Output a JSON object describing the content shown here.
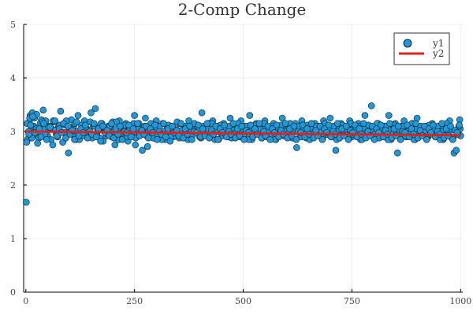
{
  "chart_data": {
    "type": "scatter",
    "title": "2-Comp Change",
    "xlabel": "",
    "ylabel": "",
    "xlim": [
      -5,
      1005
    ],
    "ylim": [
      0,
      5
    ],
    "x_ticks": [
      0,
      250,
      500,
      750,
      1000
    ],
    "x_tick_labels": [
      "0",
      "250",
      "500",
      "750",
      "1000"
    ],
    "y_ticks": [
      0,
      1,
      2,
      3,
      4,
      5
    ],
    "y_tick_labels": [
      "0",
      "1",
      "2",
      "3",
      "4",
      "5"
    ],
    "grid": true,
    "legend_position": "top-right",
    "series": [
      {
        "name": "y1",
        "type": "scatter",
        "color": "#1f97d8",
        "x": [
          1,
          5,
          8,
          10,
          12,
          15,
          18,
          20,
          22,
          25,
          28,
          30,
          33,
          36,
          40,
          43,
          46,
          50,
          55,
          60,
          65,
          70,
          75,
          80,
          85,
          90,
          95,
          100,
          105,
          110,
          115,
          120,
          125,
          130,
          135,
          140,
          145,
          150,
          155,
          160,
          165,
          170,
          175,
          180,
          185,
          190,
          195,
          200,
          205,
          210,
          215,
          220,
          225,
          230,
          235,
          240,
          245,
          250,
          255,
          260,
          265,
          270,
          275,
          280,
          285,
          290,
          295,
          300,
          305,
          310,
          315,
          320,
          325,
          330,
          335,
          340,
          345,
          350,
          355,
          360,
          365,
          370,
          375,
          380,
          385,
          390,
          395,
          400,
          405,
          410,
          415,
          420,
          425,
          430,
          435,
          440,
          445,
          450,
          455,
          460,
          465,
          470,
          475,
          480,
          485,
          490,
          495,
          500,
          505,
          510,
          515,
          520,
          525,
          530,
          535,
          540,
          545,
          550,
          555,
          560,
          565,
          570,
          575,
          580,
          585,
          590,
          595,
          600,
          605,
          610,
          615,
          620,
          625,
          630,
          635,
          640,
          645,
          650,
          655,
          660,
          665,
          670,
          675,
          680,
          685,
          690,
          695,
          700,
          705,
          710,
          715,
          720,
          725,
          730,
          735,
          740,
          745,
          750,
          755,
          760,
          765,
          770,
          775,
          780,
          785,
          790,
          795,
          800,
          805,
          810,
          815,
          820,
          825,
          830,
          835,
          840,
          845,
          850,
          855,
          860,
          865,
          870,
          875,
          880,
          885,
          890,
          895,
          900,
          905,
          910,
          915,
          920,
          925,
          930,
          935,
          940,
          945,
          950,
          955,
          960,
          965,
          970,
          975,
          980,
          985,
          990,
          995,
          998,
          999,
          1000,
          3,
          6,
          9,
          14,
          17,
          24,
          27,
          38,
          44,
          52,
          58,
          63,
          68,
          73,
          78,
          88,
          93,
          98,
          103,
          108,
          113,
          118,
          123,
          128,
          133,
          138,
          143,
          148,
          153,
          158,
          163,
          168,
          173,
          178,
          183,
          188,
          193,
          198,
          203,
          208,
          213,
          218,
          223,
          228,
          233,
          238,
          243,
          248,
          253,
          258,
          263,
          268,
          273,
          278,
          283,
          288,
          293,
          298,
          303,
          308,
          313,
          318,
          323,
          328,
          333,
          338,
          343,
          348,
          353,
          358,
          363,
          368,
          373,
          378,
          383,
          388,
          393,
          398,
          403,
          408,
          413,
          418,
          423,
          428,
          433,
          438,
          443,
          448,
          453,
          458,
          463,
          468,
          473,
          478,
          483,
          488,
          493,
          498,
          503,
          508,
          513,
          518,
          523,
          528,
          533,
          538,
          543,
          548,
          553,
          558,
          563,
          568,
          573,
          578,
          583,
          588,
          593,
          598,
          603,
          608,
          613,
          618,
          623,
          628,
          633,
          638,
          643,
          648,
          653,
          658,
          663,
          668,
          673,
          678,
          683,
          688,
          693,
          698,
          703,
          708,
          713,
          718,
          723,
          728,
          733,
          738,
          743,
          748,
          753,
          758,
          763,
          768,
          773,
          778,
          783,
          788,
          793,
          798,
          803,
          808,
          813,
          818,
          823,
          828,
          833,
          838,
          843,
          848,
          853,
          858,
          863,
          868,
          873,
          878,
          883,
          888,
          893,
          898,
          903,
          908,
          913,
          918,
          923,
          928,
          933,
          938,
          943,
          948,
          953,
          958,
          963,
          968,
          973,
          978,
          983,
          988,
          993,
          996,
          2,
          7,
          11,
          16,
          21,
          31,
          35,
          41,
          48,
          56,
          62,
          67,
          72,
          77,
          82,
          87,
          92,
          97,
          102,
          107,
          112,
          117,
          122,
          127,
          132,
          137,
          142,
          147,
          152,
          157,
          162,
          167,
          172,
          177,
          182,
          187,
          192,
          197,
          202,
          207,
          212,
          217,
          222,
          227,
          232,
          237,
          242,
          247,
          252,
          257,
          262,
          267,
          272,
          277,
          282,
          287,
          292,
          297,
          302,
          307,
          312,
          317,
          322,
          327,
          332,
          337,
          342,
          347,
          352,
          357,
          362,
          367,
          372,
          377,
          382,
          387,
          392,
          397,
          402,
          407,
          412,
          417,
          422,
          427,
          432,
          437,
          442,
          447,
          452,
          457,
          462,
          467,
          472,
          477,
          482,
          487,
          492,
          497,
          502,
          507,
          512,
          517,
          522,
          527,
          532,
          537,
          542,
          547,
          552,
          557,
          562,
          567,
          572,
          577,
          582,
          587,
          592,
          597,
          602,
          607,
          612,
          617,
          622,
          627,
          632,
          637,
          642,
          647,
          652,
          657,
          662,
          667,
          672,
          677,
          682,
          687,
          692,
          697,
          702,
          707,
          712,
          717,
          722,
          727,
          732,
          737,
          742,
          747,
          752,
          757,
          762,
          767,
          772,
          777,
          782,
          787,
          792,
          797,
          802,
          807,
          812,
          817,
          822,
          827,
          832,
          837,
          842,
          847,
          852,
          857,
          862,
          867,
          872,
          877,
          882,
          887,
          892,
          897,
          902,
          907,
          912,
          917,
          922,
          927,
          932,
          937,
          942,
          947,
          952,
          957,
          962,
          967,
          972,
          977,
          982,
          987,
          992,
          997
        ],
        "y": [
          1.68,
          2.86,
          3.18,
          3.3,
          3.05,
          3.35,
          3.1,
          3.25,
          2.95,
          3.32,
          3.0,
          2.88,
          3.15,
          3.22,
          3.4,
          3.05,
          3.2,
          2.92,
          3.1,
          3.05,
          3.18,
          2.95,
          3.08,
          3.38,
          2.8,
          3.12,
          2.95,
          3.05,
          3.22,
          3.1,
          2.85,
          3.3,
          2.95,
          3.0,
          3.2,
          3.05,
          2.9,
          3.35,
          3.1,
          3.43,
          3.0,
          2.88,
          3.15,
          3.02,
          2.92,
          3.1,
          3.0,
          3.18,
          2.75,
          3.05,
          3.2,
          2.9,
          3.05,
          3.15,
          2.82,
          3.0,
          3.1,
          3.3,
          2.9,
          3.15,
          2.95,
          3.05,
          3.25,
          2.72,
          3.0,
          3.1,
          2.88,
          3.2,
          3.0,
          2.95,
          3.15,
          2.85,
          3.05,
          3.0,
          3.1,
          2.9,
          3.05,
          2.95,
          3.15,
          3.0,
          3.1,
          2.88,
          3.2,
          2.95,
          3.05,
          3.0,
          3.1,
          2.9,
          3.35,
          3.05,
          2.95,
          3.15,
          3.0,
          3.2,
          2.85,
          3.1,
          3.0,
          2.95,
          3.15,
          3.05,
          2.9,
          3.25,
          3.0,
          3.1,
          2.95,
          3.05,
          3.2,
          2.9,
          3.1,
          3.0,
          3.3,
          2.85,
          3.05,
          3.15,
          2.95,
          3.0,
          3.1,
          3.2,
          2.9,
          3.05,
          3.0,
          3.15,
          2.85,
          3.1,
          3.0,
          3.25,
          2.95,
          3.05,
          3.1,
          2.9,
          3.0,
          3.15,
          3.05,
          2.95,
          3.2,
          3.0,
          2.88,
          3.1,
          3.05,
          2.95,
          3.15,
          3.0,
          3.1,
          2.9,
          3.2,
          3.05,
          2.95,
          3.25,
          3.0,
          3.1,
          2.85,
          3.05,
          3.15,
          2.95,
          3.0,
          3.1,
          3.2,
          2.9,
          3.05,
          3.0,
          3.15,
          2.85,
          3.1,
          3.3,
          2.95,
          3.05,
          3.48,
          2.9,
          3.0,
          3.15,
          3.05,
          2.95,
          3.1,
          3.0,
          3.3,
          2.85,
          3.05,
          3.15,
          2.6,
          3.0,
          3.1,
          3.2,
          2.9,
          3.05,
          3.0,
          3.15,
          2.85,
          3.25,
          3.0,
          2.95,
          3.05,
          3.1,
          2.9,
          3.0,
          3.15,
          2.95,
          3.05,
          3.0,
          3.1,
          2.85,
          3.0,
          2.95,
          3.2,
          2.88,
          2.6,
          2.65,
          2.95,
          3.22,
          3.05,
          2.92,
          3.15,
          3.0,
          3.25,
          2.88,
          3.1,
          3.05,
          2.78,
          3.18,
          2.95,
          3.08,
          2.85,
          3.2,
          3.02,
          2.9,
          3.12,
          2.98,
          3.2,
          2.6,
          3.05,
          2.95,
          3.15,
          3.0,
          2.85,
          3.12,
          2.92,
          3.05,
          2.98,
          3.18,
          2.88,
          3.1,
          2.95,
          3.02,
          3.15,
          2.82,
          3.05,
          2.95,
          3.1,
          2.9,
          3.0,
          3.18,
          2.85,
          3.05,
          2.98,
          3.12,
          2.9,
          3.02,
          2.95,
          3.15,
          2.88,
          3.05,
          2.98,
          2.65,
          3.1,
          2.92,
          3.02,
          3.15,
          2.88,
          3.05,
          2.95,
          3.1,
          2.85,
          3.0,
          2.95,
          3.12,
          2.9,
          3.05,
          2.98,
          3.18,
          2.88,
          3.02,
          2.95,
          3.1,
          2.85,
          3.05,
          2.92,
          3.15,
          2.98,
          3.02,
          2.88,
          3.1,
          2.95,
          3.05,
          2.9,
          3.15,
          2.98,
          3.0,
          2.85,
          3.12,
          2.92,
          3.05,
          2.95,
          3.1,
          2.88,
          3.02,
          2.98,
          3.15,
          2.9,
          3.05,
          2.95,
          3.1,
          2.85,
          3.0,
          2.92,
          3.12,
          2.98,
          3.05,
          2.88,
          3.15,
          2.95,
          3.02,
          2.9,
          3.1,
          2.85,
          3.05,
          2.98,
          3.12,
          2.92,
          3.0,
          2.95,
          3.15,
          2.88,
          3.05,
          2.7,
          3.1,
          2.9,
          3.02,
          2.95,
          3.12,
          2.85,
          3.05,
          2.98,
          3.1,
          2.92,
          3.0,
          2.88,
          3.15,
          2.95,
          3.05,
          2.9,
          3.1,
          2.65,
          3.0,
          2.92,
          3.12,
          2.98,
          3.05,
          2.88,
          3.15,
          2.95,
          3.02,
          2.9,
          3.1,
          2.85,
          3.05,
          2.98,
          3.12,
          2.92,
          3.0,
          2.95,
          3.15,
          2.88,
          3.05,
          2.9,
          3.1,
          2.85,
          3.02,
          2.95,
          3.12,
          2.98,
          3.05,
          2.88,
          3.1,
          2.92,
          3.0,
          2.95,
          3.15,
          2.85,
          3.05,
          2.9,
          3.1,
          2.98,
          3.02,
          2.88,
          3.12,
          2.95,
          3.05,
          2.9,
          3.1,
          2.85,
          3.0,
          2.92,
          3.15,
          2.98,
          3.05,
          2.88,
          3.02,
          2.95,
          3.1,
          2.8,
          2.95,
          3.12,
          3.28,
          2.98,
          3.05,
          2.9,
          3.15,
          2.85,
          3.08,
          2.75,
          3.2,
          2.92,
          3.05,
          2.98,
          3.15,
          2.88,
          3.1,
          2.95,
          3.02,
          2.85,
          3.18,
          2.92,
          3.05,
          2.98,
          3.12,
          2.88,
          3.0,
          2.95,
          3.15,
          2.9,
          3.05,
          2.82,
          3.1,
          2.98,
          3.02,
          2.92,
          3.15,
          2.88,
          3.05,
          2.95,
          3.1,
          2.85,
          3.0,
          2.98,
          3.12,
          2.9,
          3.05,
          2.75,
          3.15,
          2.92,
          3.02,
          2.95,
          3.1,
          2.88,
          3.05,
          2.98,
          3.12,
          2.85,
          3.0,
          2.95,
          3.15,
          2.9,
          3.05,
          2.82,
          3.1,
          2.98,
          3.02,
          2.92,
          3.15,
          2.88,
          3.05,
          2.95,
          3.1,
          2.85,
          3.0,
          2.98,
          3.12,
          2.9,
          3.05,
          2.92,
          3.15,
          2.88,
          3.02,
          2.95,
          3.1,
          2.85,
          3.05,
          2.98,
          3.12,
          2.9,
          3.0,
          2.95,
          3.15,
          2.88,
          3.05,
          2.92,
          3.1,
          2.85,
          3.02,
          2.98,
          3.12,
          2.9,
          3.05,
          2.95,
          3.15,
          2.88,
          3.0,
          2.92,
          3.1,
          2.85,
          3.05,
          2.98,
          3.12,
          2.9,
          3.02,
          2.95,
          3.15,
          2.88,
          3.05,
          2.92,
          3.1,
          2.85,
          3.0,
          2.98,
          3.12,
          2.9,
          3.05,
          2.95,
          3.15,
          2.88,
          3.02,
          2.92,
          3.1,
          2.85,
          3.05,
          2.98,
          3.12,
          2.9,
          3.0,
          2.95,
          3.15,
          2.88,
          3.05,
          2.92,
          3.1,
          2.85,
          3.02,
          2.98,
          3.12,
          2.9,
          3.05,
          2.95,
          3.15,
          2.88,
          3.0,
          2.92,
          3.1,
          2.85,
          3.05,
          2.98,
          3.12,
          2.9,
          3.02,
          2.95,
          3.15,
          2.88,
          3.05,
          2.92,
          3.1,
          2.85,
          3.0,
          2.98,
          3.12,
          2.9,
          3.05,
          2.95,
          3.15,
          2.88,
          3.02,
          2.92,
          3.1,
          2.85,
          3.05,
          2.98,
          3.12,
          2.9,
          3.0,
          2.95,
          3.15,
          2.88,
          3.05,
          2.92,
          3.1,
          2.85,
          3.02,
          2.98,
          3.12
        ]
      },
      {
        "name": "y2",
        "type": "line",
        "color": "#e0221a",
        "x": [
          1,
          1000
        ],
        "y": [
          3.0,
          2.93
        ]
      }
    ]
  }
}
